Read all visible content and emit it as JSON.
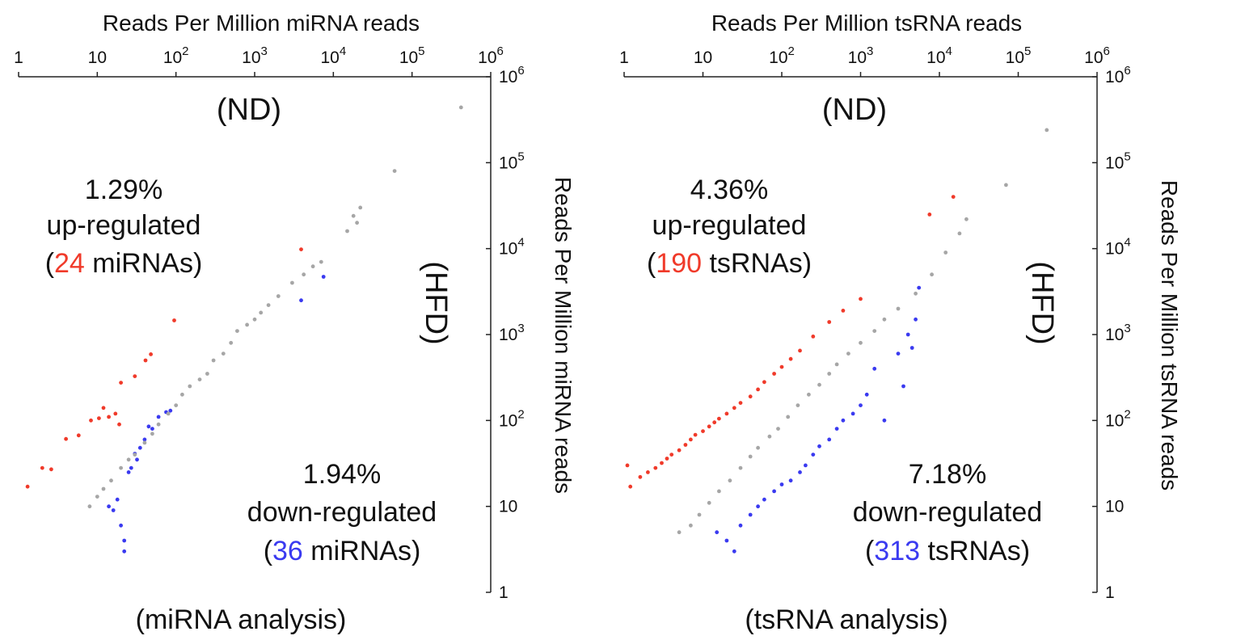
{
  "colors": {
    "up": "#f03a2a",
    "down": "#3a3af0",
    "unchanged": "#a6a6a6",
    "axis": "#222222",
    "text": "#111111"
  },
  "chart_data": [
    {
      "type": "scatter",
      "scale": "log",
      "xlabel": "Reads Per Million miRNA reads",
      "ylabel": "Reads Per Million miRNA reads",
      "x_axis_side": "top",
      "y_axis_side": "right",
      "x_group_label": "(ND)",
      "y_group_label": "(HFD)",
      "caption": "(miRNA analysis)",
      "xlim": [
        1,
        1000000
      ],
      "ylim": [
        1,
        1000000
      ],
      "x_ticks": [
        "1",
        "10",
        "10",
        "10",
        "10",
        "10",
        "10"
      ],
      "x_tick_exponents": [
        "",
        "",
        "2",
        "3",
        "4",
        "5",
        "6"
      ],
      "y_ticks": [
        "1",
        "10",
        "10",
        "10",
        "10",
        "10",
        "10"
      ],
      "y_tick_exponents": [
        "",
        "",
        "2",
        "3",
        "4",
        "5",
        "6"
      ],
      "up": {
        "percent": "1.29%",
        "label": "up-regulated",
        "count": "24",
        "unit": "miRNAs",
        "legend_position": "upper-left"
      },
      "down": {
        "percent": "1.94%",
        "label": "down-regulated",
        "count": "36",
        "unit": "miRNAs",
        "legend_position": "lower-right"
      },
      "series": [
        {
          "name": "up-regulated",
          "color_key": "up",
          "points": [
            [
              1.3,
              17
            ],
            [
              2.0,
              28
            ],
            [
              2.6,
              27
            ],
            [
              4.0,
              61
            ],
            [
              5.8,
              67
            ],
            [
              8.3,
              100
            ],
            [
              10.5,
              106
            ],
            [
              12,
              140
            ],
            [
              17,
              120
            ],
            [
              20,
              275
            ],
            [
              30,
              327
            ],
            [
              41,
              500
            ],
            [
              48,
              590
            ],
            [
              95,
              1460
            ],
            [
              3900,
              9800
            ],
            [
              19,
              90
            ],
            [
              14,
              110
            ]
          ]
        },
        {
          "name": "down-regulated",
          "color_key": "down",
          "points": [
            [
              14,
              10
            ],
            [
              16,
              9
            ],
            [
              18,
              12
            ],
            [
              20,
              6
            ],
            [
              22,
              4
            ],
            [
              22,
              3
            ],
            [
              25,
              25
            ],
            [
              27,
              28
            ],
            [
              30,
              41
            ],
            [
              32,
              35
            ],
            [
              35,
              48
            ],
            [
              40,
              60
            ],
            [
              45,
              85
            ],
            [
              50,
              80
            ],
            [
              60,
              110
            ],
            [
              75,
              125
            ],
            [
              85,
              130
            ],
            [
              3900,
              2500
            ],
            [
              7500,
              4700
            ]
          ]
        },
        {
          "name": "unchanged",
          "color_key": "unchanged",
          "points": [
            [
              420000,
              440000
            ],
            [
              60000,
              80000
            ],
            [
              22000,
              30000
            ],
            [
              20000,
              20000
            ],
            [
              18000,
              24000
            ],
            [
              15000,
              16000
            ],
            [
              7000,
              7000
            ],
            [
              5500,
              6200
            ],
            [
              4200,
              5000
            ],
            [
              3000,
              4000
            ],
            [
              2000,
              2800
            ],
            [
              1500,
              2200
            ],
            [
              1200,
              1800
            ],
            [
              1000,
              1500
            ],
            [
              800,
              1300
            ],
            [
              600,
              1100
            ],
            [
              500,
              800
            ],
            [
              400,
              600
            ],
            [
              300,
              500
            ],
            [
              250,
              350
            ],
            [
              200,
              300
            ],
            [
              150,
              250
            ],
            [
              120,
              200
            ],
            [
              100,
              150
            ],
            [
              80,
              120
            ],
            [
              60,
              90
            ],
            [
              50,
              70
            ],
            [
              40,
              55
            ],
            [
              30,
              40
            ],
            [
              25,
              35
            ],
            [
              20,
              28
            ],
            [
              15,
              20
            ],
            [
              12,
              16
            ],
            [
              10,
              13
            ],
            [
              8,
              10
            ]
          ]
        }
      ]
    },
    {
      "type": "scatter",
      "scale": "log",
      "xlabel": "Reads Per Million tsRNA reads",
      "ylabel": "Reads Per Million tsRNA reads",
      "x_axis_side": "top",
      "y_axis_side": "right",
      "x_group_label": "(ND)",
      "y_group_label": "(HFD)",
      "caption": "(tsRNA analysis)",
      "xlim": [
        1,
        1000000
      ],
      "ylim": [
        1,
        1000000
      ],
      "x_ticks": [
        "1",
        "10",
        "10",
        "10",
        "10",
        "10",
        "10"
      ],
      "x_tick_exponents": [
        "",
        "",
        "2",
        "3",
        "4",
        "5",
        "6"
      ],
      "y_ticks": [
        "1",
        "10",
        "10",
        "10",
        "10",
        "10",
        "10"
      ],
      "y_tick_exponents": [
        "",
        "",
        "2",
        "3",
        "4",
        "5",
        "6"
      ],
      "up": {
        "percent": "4.36%",
        "label": "up-regulated",
        "count": "190",
        "unit": "tsRNAs",
        "legend_position": "upper-left"
      },
      "down": {
        "percent": "7.18%",
        "label": "down-regulated",
        "count": "313",
        "unit": "tsRNAs",
        "legend_position": "lower-right"
      },
      "series": [
        {
          "name": "up-regulated",
          "color_key": "up",
          "points": [
            [
              1.1,
              30
            ],
            [
              1.2,
              17
            ],
            [
              1.6,
              22
            ],
            [
              2.0,
              25
            ],
            [
              2.5,
              28
            ],
            [
              3.0,
              32
            ],
            [
              3.5,
              36
            ],
            [
              4.0,
              40
            ],
            [
              5.0,
              45
            ],
            [
              6.0,
              52
            ],
            [
              7.0,
              60
            ],
            [
              8.0,
              68
            ],
            [
              10,
              75
            ],
            [
              12,
              85
            ],
            [
              14,
              95
            ],
            [
              16,
              105
            ],
            [
              20,
              120
            ],
            [
              25,
              140
            ],
            [
              30,
              160
            ],
            [
              40,
              190
            ],
            [
              50,
              230
            ],
            [
              60,
              280
            ],
            [
              80,
              350
            ],
            [
              100,
              420
            ],
            [
              130,
              520
            ],
            [
              170,
              650
            ],
            [
              250,
              950
            ],
            [
              400,
              1400
            ],
            [
              600,
              1900
            ],
            [
              1000,
              2600
            ],
            [
              15000,
              40000
            ],
            [
              7500,
              25000
            ]
          ]
        },
        {
          "name": "down-regulated",
          "color_key": "down",
          "points": [
            [
              15,
              5
            ],
            [
              20,
              4
            ],
            [
              25,
              3
            ],
            [
              30,
              6
            ],
            [
              40,
              8
            ],
            [
              50,
              10
            ],
            [
              60,
              12
            ],
            [
              80,
              15
            ],
            [
              100,
              18
            ],
            [
              130,
              20
            ],
            [
              170,
              25
            ],
            [
              200,
              30
            ],
            [
              250,
              40
            ],
            [
              300,
              50
            ],
            [
              400,
              60
            ],
            [
              500,
              80
            ],
            [
              600,
              100
            ],
            [
              800,
              120
            ],
            [
              1000,
              150
            ],
            [
              1200,
              200
            ],
            [
              1500,
              400
            ],
            [
              3000,
              600
            ],
            [
              4000,
              1000
            ],
            [
              5000,
              1500
            ],
            [
              5500,
              3500
            ],
            [
              4500,
              700
            ],
            [
              3500,
              250
            ],
            [
              2000,
              100
            ]
          ]
        },
        {
          "name": "unchanged",
          "color_key": "unchanged",
          "points": [
            [
              230000,
              240000
            ],
            [
              70000,
              55000
            ],
            [
              22000,
              22000
            ],
            [
              18000,
              15000
            ],
            [
              12000,
              9000
            ],
            [
              8000,
              5000
            ],
            [
              5000,
              3000
            ],
            [
              3000,
              2000
            ],
            [
              2000,
              1500
            ],
            [
              1500,
              1100
            ],
            [
              1000,
              800
            ],
            [
              700,
              600
            ],
            [
              500,
              450
            ],
            [
              400,
              350
            ],
            [
              300,
              260
            ],
            [
              220,
              200
            ],
            [
              160,
              150
            ],
            [
              120,
              110
            ],
            [
              90,
              80
            ],
            [
              70,
              65
            ],
            [
              50,
              48
            ],
            [
              40,
              38
            ],
            [
              30,
              28
            ],
            [
              22,
              20
            ],
            [
              16,
              15
            ],
            [
              12,
              11
            ],
            [
              9,
              8
            ],
            [
              7,
              6
            ],
            [
              5,
              5
            ]
          ]
        }
      ]
    }
  ]
}
